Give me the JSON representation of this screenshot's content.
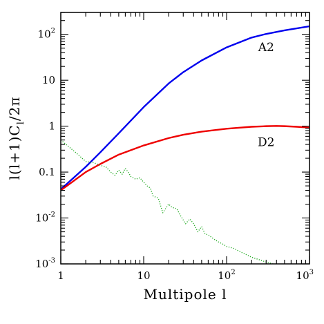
{
  "chart_data": {
    "type": "line",
    "xscale": "log",
    "yscale": "log",
    "xlim": [
      1,
      1000
    ],
    "ylim": [
      0.001,
      300
    ],
    "xlabel": "Multipole l",
    "ylabel": "l(l+1)C_l/2π",
    "ylabel_main": "l(l+1)C",
    "ylabel_sub": "l",
    "ylabel_tail": "/2π",
    "x_ticks": [
      {
        "value": 1,
        "base": "1",
        "exp": ""
      },
      {
        "value": 10,
        "base": "10",
        "exp": ""
      },
      {
        "value": 100,
        "base": "10",
        "exp": "2"
      },
      {
        "value": 1000,
        "base": "10",
        "exp": "3"
      }
    ],
    "y_ticks": [
      {
        "value": 0.001,
        "base": "10",
        "exp": "-3"
      },
      {
        "value": 0.01,
        "base": "10",
        "exp": "-2"
      },
      {
        "value": 0.1,
        "base": "0.1",
        "exp": ""
      },
      {
        "value": 1,
        "base": "1",
        "exp": ""
      },
      {
        "value": 10,
        "base": "10",
        "exp": ""
      },
      {
        "value": 100,
        "base": "10",
        "exp": "2"
      }
    ],
    "grid": false,
    "legend": "none",
    "series": [
      {
        "name": "A2",
        "color": "#0000ee",
        "style": "solid",
        "x": [
          1,
          2,
          3,
          5,
          10,
          20,
          30,
          50,
          100,
          200,
          300,
          500,
          1000
        ],
        "y": [
          0.042,
          0.13,
          0.27,
          0.7,
          2.6,
          8.5,
          15,
          27,
          52,
          85,
          102,
          122,
          150
        ]
      },
      {
        "name": "D2",
        "color": "#ee0000",
        "style": "solid",
        "x": [
          1,
          2,
          3,
          5,
          10,
          20,
          30,
          50,
          100,
          200,
          300,
          400,
          500,
          700,
          1000
        ],
        "y": [
          0.04,
          0.1,
          0.15,
          0.24,
          0.38,
          0.55,
          0.65,
          0.76,
          0.88,
          0.97,
          1.0,
          1.01,
          1.0,
          0.97,
          0.93
        ]
      },
      {
        "color": "#22aa22",
        "style": "dotted",
        "x": [
          1,
          1.5,
          2,
          2.5,
          3,
          3.5,
          4,
          4.5,
          5,
          5.5,
          6,
          6.5,
          7,
          8,
          9,
          10,
          11,
          12,
          13,
          15,
          17,
          20,
          22,
          25,
          28,
          32,
          36,
          40,
          45,
          50,
          55,
          60,
          70,
          80,
          90,
          100,
          120,
          150,
          200,
          300,
          400,
          600
        ],
        "y": [
          0.5,
          0.27,
          0.17,
          0.16,
          0.14,
          0.13,
          0.1,
          0.085,
          0.11,
          0.09,
          0.12,
          0.1,
          0.08,
          0.07,
          0.075,
          0.06,
          0.05,
          0.045,
          0.03,
          0.027,
          0.013,
          0.02,
          0.017,
          0.016,
          0.011,
          0.0075,
          0.0095,
          0.0075,
          0.005,
          0.0065,
          0.0045,
          0.0043,
          0.0035,
          0.003,
          0.0027,
          0.0024,
          0.0022,
          0.0018,
          0.0014,
          0.0011,
          0.00095,
          0.0008
        ]
      }
    ],
    "annotations": [
      {
        "text": "A2",
        "x": 300,
        "y": 53
      },
      {
        "text": "D2",
        "x": 300,
        "y": 0.45
      }
    ]
  }
}
